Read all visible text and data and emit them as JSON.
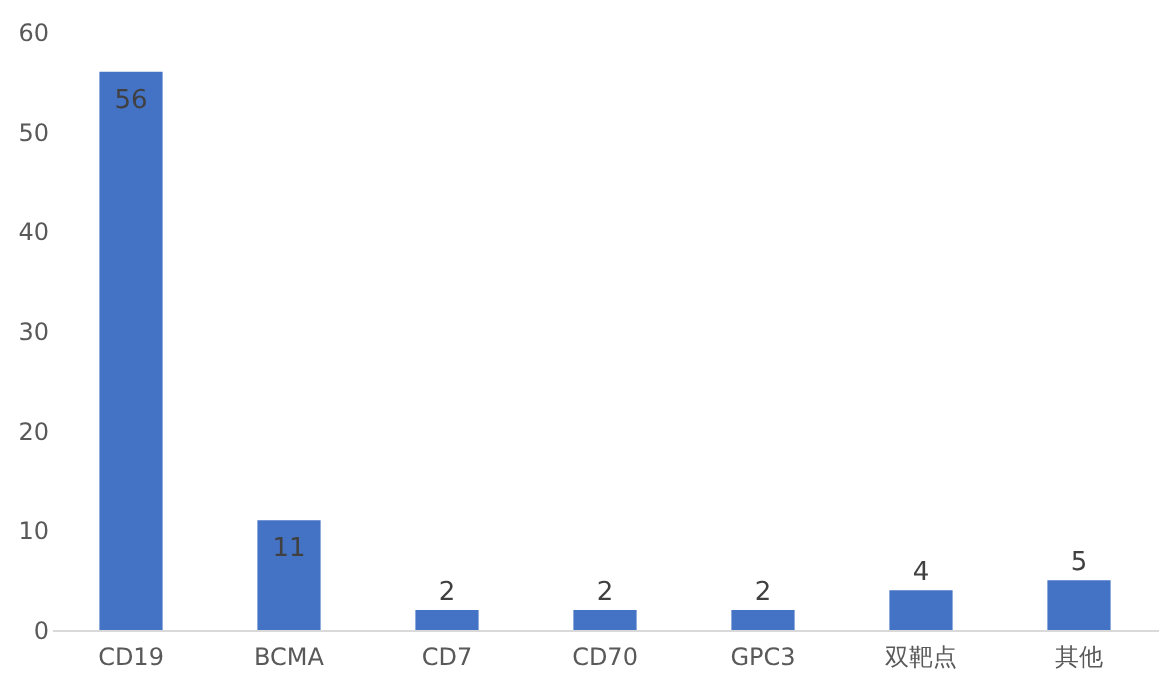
{
  "chart_data": {
    "type": "bar",
    "categories": [
      "CD19",
      "BCMA",
      "CD7",
      "CD70",
      "GPC3",
      "双靶点",
      "其他"
    ],
    "values": [
      56,
      11,
      2,
      2,
      2,
      4,
      5
    ],
    "color": "#4472c4",
    "ylim": [
      0,
      60
    ],
    "yticks": [
      0,
      10,
      20,
      30,
      40,
      50,
      60
    ],
    "grid": false,
    "data_labels": true
  }
}
